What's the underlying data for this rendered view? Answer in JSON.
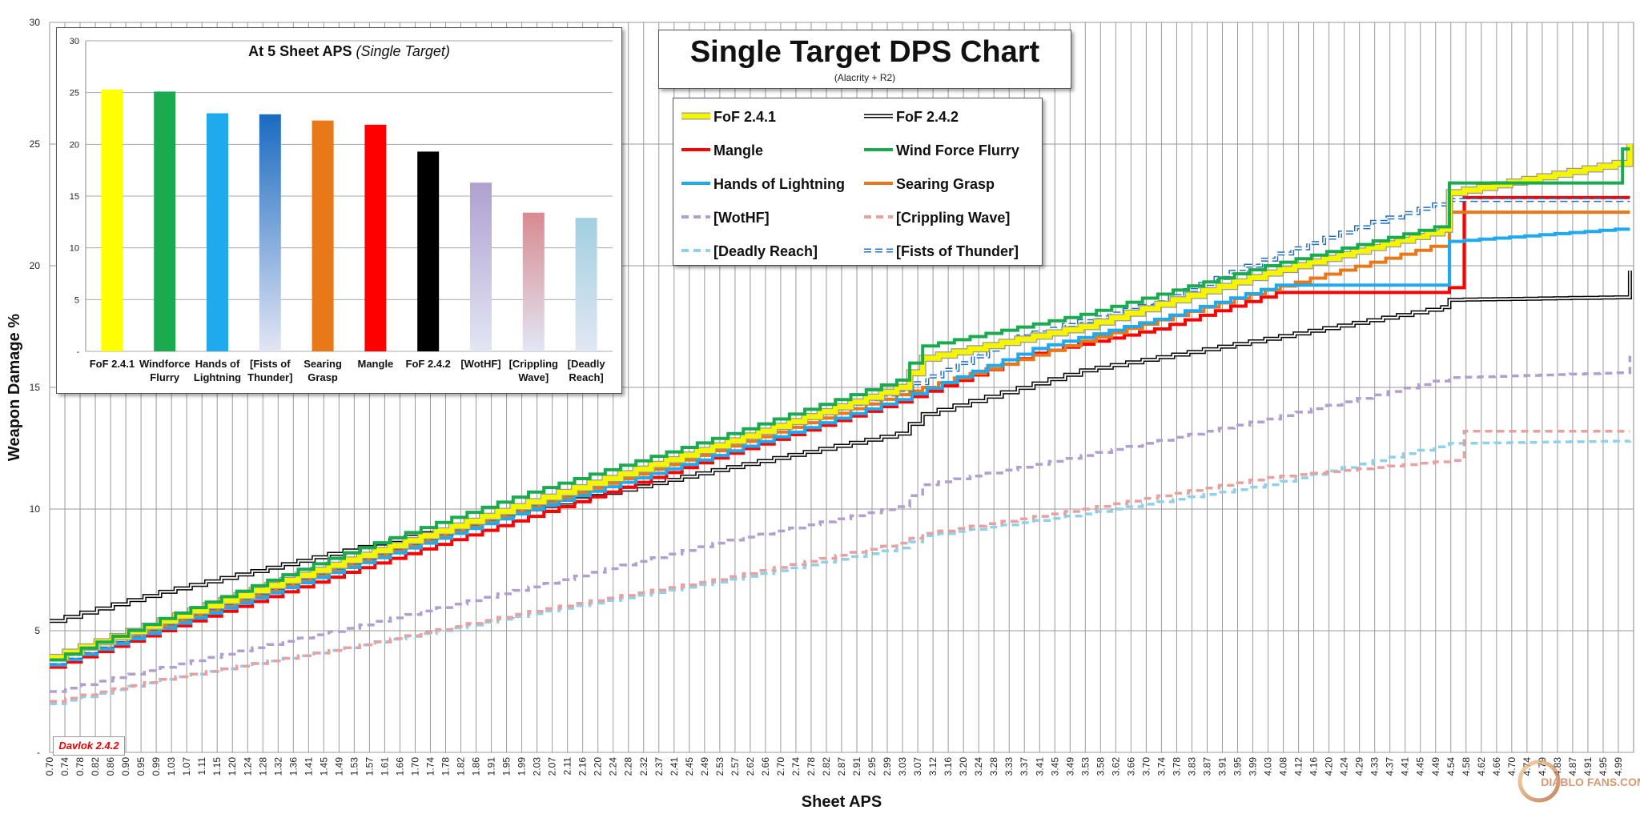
{
  "title": "Single Target DPS Chart",
  "subtitle": "(Alacrity + R2)",
  "author_tag": "Davlok 2.4.2",
  "watermark": "DIABLO FANS.COM",
  "chart_data": [
    {
      "type": "line",
      "title": "Single Target DPS Chart",
      "subtitle": "(Alacrity + R2)",
      "xlabel": "Sheet APS",
      "ylabel": "Weapon Damage %",
      "xlim": [
        0.7,
        5.0
      ],
      "ylim": [
        0,
        30
      ],
      "grid": true,
      "legend_placement": "top-center",
      "y_tick_labels": [
        "-",
        "5",
        "10",
        "15",
        "20",
        "25",
        "30"
      ],
      "x_tick_labels": [
        "0.70",
        "0.74",
        "0.78",
        "0.82",
        "0.86",
        "0.90",
        "0.95",
        "0.99",
        "1.03",
        "1.07",
        "1.11",
        "1.15",
        "1.20",
        "1.24",
        "1.28",
        "1.32",
        "1.36",
        "1.41",
        "1.45",
        "1.49",
        "1.53",
        "1.57",
        "1.61",
        "1.66",
        "1.70",
        "1.74",
        "1.78",
        "1.82",
        "1.86",
        "1.91",
        "1.95",
        "1.99",
        "2.03",
        "2.07",
        "2.11",
        "2.16",
        "2.20",
        "2.24",
        "2.28",
        "2.32",
        "2.37",
        "2.41",
        "2.45",
        "2.49",
        "2.53",
        "2.57",
        "2.62",
        "2.66",
        "2.70",
        "2.74",
        "2.78",
        "2.82",
        "2.87",
        "2.91",
        "2.95",
        "2.99",
        "3.03",
        "3.07",
        "3.12",
        "3.16",
        "3.20",
        "3.24",
        "3.28",
        "3.33",
        "3.37",
        "3.41",
        "3.45",
        "3.49",
        "3.53",
        "3.58",
        "3.62",
        "3.66",
        "3.70",
        "3.74",
        "3.78",
        "3.83",
        "3.87",
        "3.91",
        "3.95",
        "3.99",
        "4.03",
        "4.08",
        "4.12",
        "4.16",
        "4.20",
        "4.24",
        "4.29",
        "4.33",
        "4.37",
        "4.41",
        "4.45",
        "4.49",
        "4.54",
        "4.58",
        "4.62",
        "4.66",
        "4.70",
        "4.74",
        "4.79",
        "4.83",
        "4.87",
        "4.91",
        "4.95",
        "4.99"
      ],
      "series": [
        {
          "name": "FoF 2.4.1",
          "color": "#f5f500",
          "dash": "solid",
          "style": "band",
          "x": [
            0.7,
            1.0,
            1.5,
            2.0,
            2.5,
            3.0,
            3.07,
            3.5,
            4.0,
            4.48,
            4.5,
            4.95,
            4.99
          ],
          "y": [
            3.9,
            5.4,
            7.9,
            10.3,
            12.6,
            15.0,
            16.2,
            17.5,
            19.7,
            21.5,
            23.0,
            24.2,
            25.0
          ]
        },
        {
          "name": "FoF 2.4.2",
          "color": "#000000",
          "dash": "solid",
          "style": "double",
          "x": [
            0.7,
            1.0,
            1.5,
            2.0,
            2.5,
            3.0,
            3.07,
            3.5,
            4.0,
            4.48,
            4.5,
            4.95,
            4.99
          ],
          "y": [
            5.4,
            6.6,
            8.3,
            10.0,
            11.6,
            13.1,
            13.9,
            15.7,
            17.0,
            18.3,
            18.6,
            18.7,
            19.8
          ]
        },
        {
          "name": "Mangle",
          "color": "#ff0000",
          "dash": "solid",
          "style": "line",
          "x": [
            0.7,
            1.0,
            1.5,
            2.0,
            2.5,
            3.0,
            3.37,
            3.7,
            4.03,
            4.45,
            4.5,
            4.54,
            4.99
          ],
          "y": [
            3.5,
            5.0,
            7.4,
            9.7,
            12.1,
            14.4,
            16.4,
            17.4,
            18.9,
            18.9,
            19.1,
            22.8,
            22.8
          ]
        },
        {
          "name": "Wind Force Flurry",
          "color": "#1aaa50",
          "dash": "solid",
          "style": "line",
          "x": [
            0.7,
            1.0,
            1.5,
            2.0,
            2.5,
            3.0,
            3.07,
            3.5,
            4.0,
            4.46,
            4.5,
            4.95,
            4.97,
            4.99
          ],
          "y": [
            3.8,
            5.5,
            8.2,
            10.7,
            12.9,
            15.3,
            16.7,
            18.0,
            20.0,
            21.6,
            23.4,
            23.4,
            24.8,
            24.8
          ]
        },
        {
          "name": "Hands of Lightning",
          "color": "#20aaee",
          "dash": "solid",
          "style": "line",
          "x": [
            0.7,
            1.0,
            1.5,
            2.0,
            2.5,
            3.0,
            3.37,
            3.7,
            4.03,
            4.45,
            4.5,
            4.95,
            4.99
          ],
          "y": [
            3.6,
            5.1,
            7.6,
            10.0,
            12.2,
            14.5,
            16.6,
            17.8,
            19.2,
            19.2,
            21.0,
            21.5,
            21.5
          ]
        },
        {
          "name": "Searing Grasp",
          "color": "#e87818",
          "dash": "solid",
          "style": "line",
          "x": [
            0.7,
            1.0,
            1.5,
            2.0,
            2.5,
            3.0,
            3.07,
            3.5,
            4.0,
            4.45,
            4.5,
            4.99
          ],
          "y": [
            3.6,
            5.2,
            7.7,
            10.1,
            12.4,
            14.7,
            15.0,
            16.9,
            19.0,
            20.8,
            22.2,
            22.2
          ]
        },
        {
          "name": "[WotHF]",
          "color": "#b0a0d0",
          "dash": "dashed",
          "style": "line",
          "x": [
            0.7,
            1.0,
            1.5,
            2.0,
            2.5,
            3.0,
            3.07,
            3.5,
            4.0,
            4.5,
            4.95,
            4.99
          ],
          "y": [
            2.5,
            3.5,
            5.1,
            6.8,
            8.6,
            10.1,
            11.0,
            12.2,
            13.7,
            15.4,
            15.6,
            16.3
          ]
        },
        {
          "name": "[Crippling Wave]",
          "color": "#e8a0a0",
          "dash": "dashed",
          "style": "line",
          "x": [
            0.7,
            1.0,
            1.5,
            2.0,
            2.5,
            3.0,
            3.07,
            3.5,
            4.0,
            4.5,
            4.54,
            4.99
          ],
          "y": [
            2.1,
            3.0,
            4.3,
            5.8,
            7.1,
            8.6,
            9.0,
            10.0,
            11.3,
            12.0,
            13.2,
            13.2
          ]
        },
        {
          "name": "[Deadly Reach]",
          "color": "#90d0e8",
          "dash": "dashed",
          "style": "line",
          "x": [
            0.7,
            1.0,
            1.5,
            2.0,
            2.5,
            3.0,
            3.07,
            3.5,
            4.0,
            4.5,
            4.99
          ],
          "y": [
            2.0,
            3.0,
            4.3,
            5.7,
            7.0,
            8.4,
            8.9,
            9.8,
            11.0,
            12.7,
            12.8
          ]
        },
        {
          "name": "[Fists of Thunder]",
          "color": "#2070c0",
          "dash": "dashed",
          "style": "double",
          "x": [
            0.7,
            1.0,
            1.5,
            2.0,
            2.5,
            3.0,
            3.33,
            3.7,
            4.03,
            4.29,
            4.5,
            4.99
          ],
          "y": [
            3.7,
            5.3,
            7.8,
            10.2,
            12.6,
            14.9,
            17.1,
            18.5,
            20.5,
            21.8,
            22.7,
            22.7
          ]
        }
      ]
    },
    {
      "type": "bar",
      "title": "At 5 Sheet APS",
      "title_suffix": "(Single Target)",
      "ylim": [
        0,
        30
      ],
      "grid": true,
      "y_tick_labels": [
        "-",
        "5",
        "10",
        "15",
        "20",
        "25",
        "30"
      ],
      "categories": [
        [
          "FoF 2.4.1"
        ],
        [
          "Windforce",
          "Flurry"
        ],
        [
          "Hands of",
          "Lightning"
        ],
        [
          "[Fists of",
          "Thunder]"
        ],
        [
          "Searing",
          "Grasp"
        ],
        [
          "Mangle"
        ],
        [
          "FoF 2.4.2"
        ],
        [
          "[WotHF]"
        ],
        [
          "[Crippling",
          "Wave]"
        ],
        [
          "[Deadly",
          "Reach]"
        ]
      ],
      "values": [
        25.3,
        25.1,
        23.0,
        22.9,
        22.3,
        21.9,
        19.3,
        16.3,
        13.4,
        12.9
      ],
      "colors": [
        "#ffff00",
        "#1aaa50",
        "#20aaee",
        "#1a6ac0",
        "#e87818",
        "#ff0000",
        "#000000",
        "#b0a0d0",
        "#d88a90",
        "#a0d0e0"
      ],
      "fade": [
        false,
        false,
        false,
        true,
        false,
        false,
        false,
        true,
        true,
        true
      ]
    }
  ]
}
